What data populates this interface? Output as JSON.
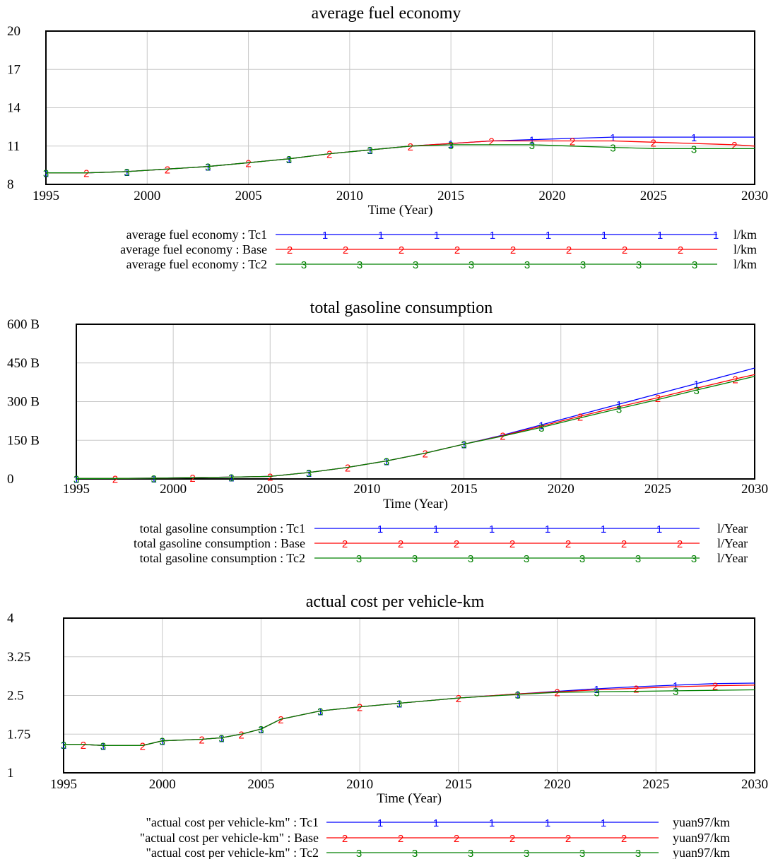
{
  "charts": [
    {
      "chart_data": {
        "type": "line",
        "title": "average fuel economy",
        "xlabel": "Time (Year)",
        "xlim": [
          1995,
          2030
        ],
        "ylim": [
          8,
          20
        ],
        "x_ticks": [
          "1995",
          "2000",
          "2005",
          "2010",
          "2015",
          "2020",
          "2025",
          "2030"
        ],
        "y_ticks": [
          "8",
          "11",
          "14",
          "17",
          "20"
        ],
        "grid": true,
        "x": [
          1995,
          1997,
          1999,
          2001,
          2003,
          2005,
          2007,
          2009,
          2011,
          2013,
          2015,
          2017,
          2019,
          2021,
          2023,
          2025,
          2027,
          2029,
          2030
        ],
        "series": [
          {
            "name": "average fuel economy : Tc1",
            "unit": "l/km",
            "marker": "1",
            "color": "#0000ff",
            "values": [
              8.9,
              8.9,
              9.0,
              9.2,
              9.4,
              9.7,
              10.0,
              10.4,
              10.7,
              11.0,
              11.2,
              11.4,
              11.5,
              11.6,
              11.7,
              11.7,
              11.7,
              11.7,
              11.7
            ]
          },
          {
            "name": "average fuel economy : Base",
            "unit": "l/km",
            "marker": "2",
            "color": "#ff0000",
            "values": [
              8.9,
              8.9,
              9.0,
              9.2,
              9.4,
              9.7,
              10.0,
              10.4,
              10.7,
              11.0,
              11.2,
              11.4,
              11.4,
              11.4,
              11.4,
              11.3,
              11.2,
              11.1,
              11.0
            ]
          },
          {
            "name": "average fuel economy : Tc2",
            "unit": "l/km",
            "marker": "3",
            "color": "#008000",
            "values": [
              8.9,
              8.9,
              9.0,
              9.2,
              9.4,
              9.7,
              10.0,
              10.4,
              10.7,
              11.0,
              11.1,
              11.1,
              11.1,
              11.0,
              10.9,
              10.8,
              10.8,
              10.8,
              10.8
            ]
          }
        ]
      }
    },
    {
      "chart_data": {
        "type": "line",
        "title": "total gasoline consumption",
        "xlabel": "Time (Year)",
        "xlim": [
          1995,
          2030
        ],
        "ylim": [
          0,
          600
        ],
        "x_ticks": [
          "1995",
          "2000",
          "2005",
          "2010",
          "2015",
          "2020",
          "2025",
          "2030"
        ],
        "y_ticks": [
          "0",
          "150 B",
          "300 B",
          "450 B",
          "600 B"
        ],
        "grid": true,
        "x": [
          1995,
          1997,
          1999,
          2001,
          2003,
          2005,
          2007,
          2009,
          2011,
          2013,
          2015,
          2017,
          2019,
          2021,
          2023,
          2025,
          2027,
          2029,
          2030
        ],
        "series": [
          {
            "name": "total gasoline consumption : Tc1",
            "unit": "l/Year",
            "marker": "1",
            "color": "#0000ff",
            "values": [
              2,
              2,
              3,
              5,
              7,
              10,
              25,
              45,
              70,
              100,
              135,
              170,
              210,
              250,
              290,
              330,
              370,
              410,
              430
            ]
          },
          {
            "name": "total gasoline consumption : Base",
            "unit": "l/Year",
            "marker": "2",
            "color": "#ff0000",
            "values": [
              2,
              2,
              3,
              5,
              7,
              10,
              25,
              45,
              70,
              100,
              135,
              168,
              205,
              243,
              280,
              315,
              352,
              388,
              405
            ]
          },
          {
            "name": "total gasoline consumption : Tc2",
            "unit": "l/Year",
            "marker": "3",
            "color": "#008000",
            "values": [
              2,
              2,
              3,
              5,
              7,
              10,
              25,
              45,
              70,
              100,
              135,
              166,
              200,
              237,
              273,
              308,
              345,
              380,
              398
            ]
          }
        ]
      }
    },
    {
      "chart_data": {
        "type": "line",
        "title": "actual cost per vehicle-km",
        "xlabel": "Time (Year)",
        "xlim": [
          1995,
          2030
        ],
        "ylim": [
          1,
          4
        ],
        "x_ticks": [
          "1995",
          "2000",
          "2005",
          "2010",
          "2015",
          "2020",
          "2025",
          "2030"
        ],
        "y_ticks": [
          "1",
          "1.75",
          "2.5",
          "3.25",
          "4"
        ],
        "grid": true,
        "x": [
          1995,
          1996,
          1997,
          1999,
          2000,
          2002,
          2003,
          2004,
          2005,
          2006,
          2008,
          2010,
          2012,
          2015,
          2018,
          2020,
          2022,
          2024,
          2026,
          2028,
          2030
        ],
        "series": [
          {
            "name": "\"actual cost per vehicle-km\" : Tc1",
            "unit": "yuan97/km",
            "marker": "1",
            "color": "#0000ff",
            "values": [
              1.55,
              1.55,
              1.53,
              1.53,
              1.62,
              1.65,
              1.68,
              1.75,
              1.85,
              2.04,
              2.2,
              2.28,
              2.35,
              2.45,
              2.53,
              2.58,
              2.63,
              2.67,
              2.7,
              2.73,
              2.74
            ]
          },
          {
            "name": "\"actual cost per vehicle-km\" : Base",
            "unit": "yuan97/km",
            "marker": "2",
            "color": "#ff0000",
            "values": [
              1.55,
              1.55,
              1.53,
              1.53,
              1.62,
              1.65,
              1.68,
              1.75,
              1.85,
              2.04,
              2.2,
              2.28,
              2.35,
              2.45,
              2.53,
              2.57,
              2.61,
              2.64,
              2.67,
              2.69,
              2.7
            ]
          },
          {
            "name": "\"actual cost per vehicle-km\" : Tc2",
            "unit": "yuan97/km",
            "marker": "3",
            "color": "#008000",
            "values": [
              1.55,
              1.55,
              1.53,
              1.53,
              1.62,
              1.65,
              1.68,
              1.75,
              1.85,
              2.04,
              2.2,
              2.28,
              2.35,
              2.45,
              2.52,
              2.56,
              2.57,
              2.58,
              2.59,
              2.6,
              2.61
            ]
          }
        ]
      }
    }
  ]
}
